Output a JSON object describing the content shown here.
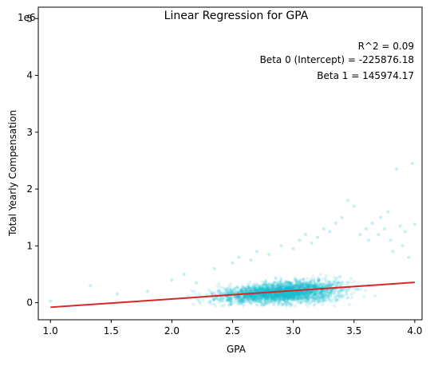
{
  "chart_data": {
    "type": "scatter",
    "title": "Linear Regression for GPA",
    "xlabel": "GPA",
    "ylabel": "Total Yearly Compensation",
    "y_offset_label": "1e6",
    "xlim": [
      0.9,
      4.06
    ],
    "ylim": [
      -300000,
      5200000
    ],
    "x_ticks": [
      1.0,
      1.5,
      2.0,
      2.5,
      3.0,
      3.5,
      4.0
    ],
    "x_tick_labels": [
      "1.0",
      "1.5",
      "2.0",
      "2.5",
      "3.0",
      "3.5",
      "4.0"
    ],
    "y_ticks": [
      0,
      1000000,
      2000000,
      3000000,
      4000000,
      5000000
    ],
    "y_tick_labels": [
      "0",
      "1",
      "2",
      "3",
      "4",
      "5"
    ],
    "grid": false,
    "scatter_color": "#17becf",
    "scatter_alpha": 0.15,
    "line_color": "#d62728",
    "annotations": {
      "r2": "R^2 = 0.09",
      "beta0": "Beta 0 (Intercept) = -225876.18",
      "beta1": "Beta 1 = 145974.17"
    },
    "regression": {
      "intercept": -225876.18,
      "slope": 145974.17,
      "x_range": [
        1.0,
        4.0
      ]
    },
    "cluster": {
      "x_center": 2.9,
      "x_spread": 0.35,
      "y_center": 180000,
      "y_spread": 110000
    },
    "points": [
      {
        "x": 1.0,
        "y": 30000
      },
      {
        "x": 1.33,
        "y": 300000
      },
      {
        "x": 1.55,
        "y": 150000
      },
      {
        "x": 1.8,
        "y": 200000
      },
      {
        "x": 2.0,
        "y": 400000
      },
      {
        "x": 2.1,
        "y": 500000
      },
      {
        "x": 2.2,
        "y": 350000
      },
      {
        "x": 2.35,
        "y": 600000
      },
      {
        "x": 2.5,
        "y": 700000
      },
      {
        "x": 2.55,
        "y": 800000
      },
      {
        "x": 2.65,
        "y": 750000
      },
      {
        "x": 2.7,
        "y": 900000
      },
      {
        "x": 2.8,
        "y": 850000
      },
      {
        "x": 2.9,
        "y": 1000000
      },
      {
        "x": 3.0,
        "y": 950000
      },
      {
        "x": 3.05,
        "y": 1100000
      },
      {
        "x": 3.1,
        "y": 1200000
      },
      {
        "x": 3.15,
        "y": 1050000
      },
      {
        "x": 3.2,
        "y": 1150000
      },
      {
        "x": 3.25,
        "y": 1300000
      },
      {
        "x": 3.3,
        "y": 1250000
      },
      {
        "x": 3.35,
        "y": 1400000
      },
      {
        "x": 3.4,
        "y": 1500000
      },
      {
        "x": 3.45,
        "y": 1800000
      },
      {
        "x": 3.5,
        "y": 1700000
      },
      {
        "x": 3.55,
        "y": 1200000
      },
      {
        "x": 3.6,
        "y": 1300000
      },
      {
        "x": 3.62,
        "y": 1100000
      },
      {
        "x": 3.65,
        "y": 1400000
      },
      {
        "x": 3.7,
        "y": 1200000
      },
      {
        "x": 3.72,
        "y": 1500000
      },
      {
        "x": 3.75,
        "y": 1300000
      },
      {
        "x": 3.78,
        "y": 1600000
      },
      {
        "x": 3.8,
        "y": 1100000
      },
      {
        "x": 3.82,
        "y": 900000
      },
      {
        "x": 3.85,
        "y": 2350000
      },
      {
        "x": 3.9,
        "y": 1000000
      },
      {
        "x": 3.95,
        "y": 800000
      },
      {
        "x": 4.0,
        "y": 1380000
      },
      {
        "x": 3.92,
        "y": 1250000
      },
      {
        "x": 3.88,
        "y": 1350000
      },
      {
        "x": 3.98,
        "y": 2450000
      }
    ]
  }
}
